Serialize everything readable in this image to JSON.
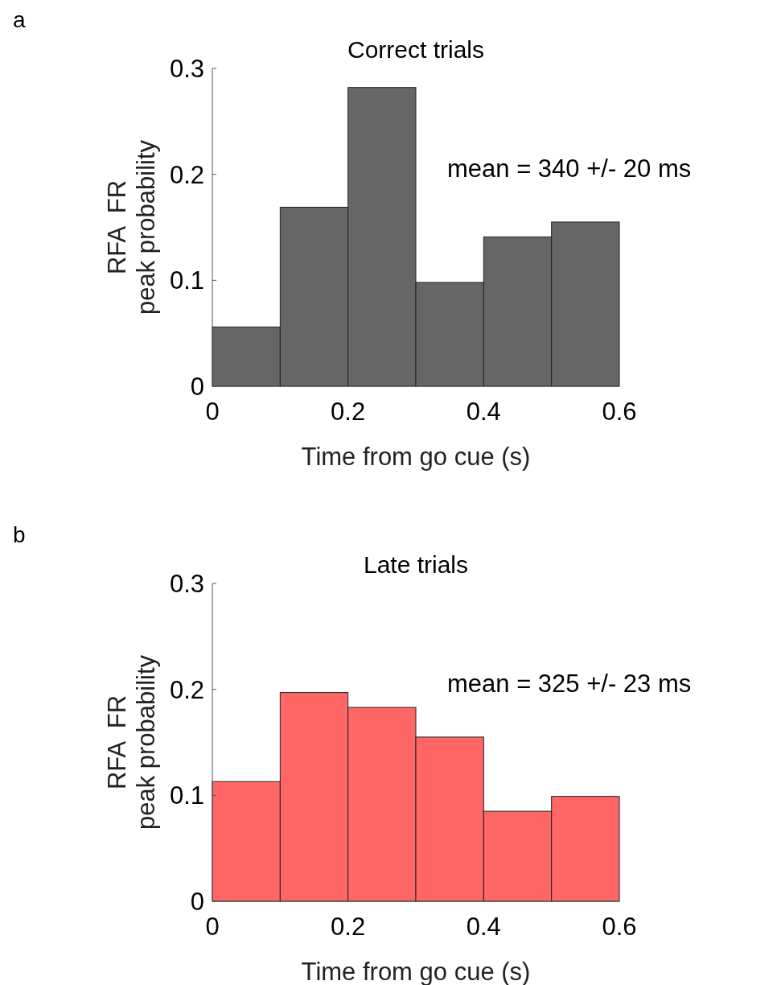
{
  "chart_data": [
    {
      "type": "histogram",
      "title": "Correct trials",
      "xlabel": "Time from go cue (s)",
      "ylabel": "RFA  FR\npeak probability",
      "annotations": [
        "a",
        "mean = 340 +/- 20 ms"
      ],
      "bins": [
        0,
        0.1,
        0.2,
        0.3,
        0.4,
        0.5,
        0.6
      ],
      "values": [
        0.056,
        0.169,
        0.282,
        0.098,
        0.141,
        0.155
      ],
      "color": "#666666",
      "xlim": [
        0,
        0.6
      ],
      "xticks": [
        0,
        0.2,
        0.4,
        0.6
      ],
      "ylim": [
        0,
        0.3
      ],
      "yticks": [
        0,
        0.1,
        0.2,
        0.3
      ]
    },
    {
      "type": "histogram",
      "title": "Late trials",
      "xlabel": "Time from go cue (s)",
      "ylabel": "RFA  FR\npeak probability",
      "annotations": [
        "b",
        "mean = 325 +/- 23 ms"
      ],
      "bins": [
        0,
        0.1,
        0.2,
        0.3,
        0.4,
        0.5,
        0.6
      ],
      "values": [
        0.113,
        0.197,
        0.183,
        0.155,
        0.085,
        0.099
      ],
      "color": "#ff6666",
      "xlim": [
        0,
        0.6
      ],
      "xticks": [
        0,
        0.2,
        0.4,
        0.6
      ],
      "ylim": [
        0,
        0.3
      ],
      "yticks": [
        0,
        0.1,
        0.2,
        0.3
      ]
    }
  ]
}
